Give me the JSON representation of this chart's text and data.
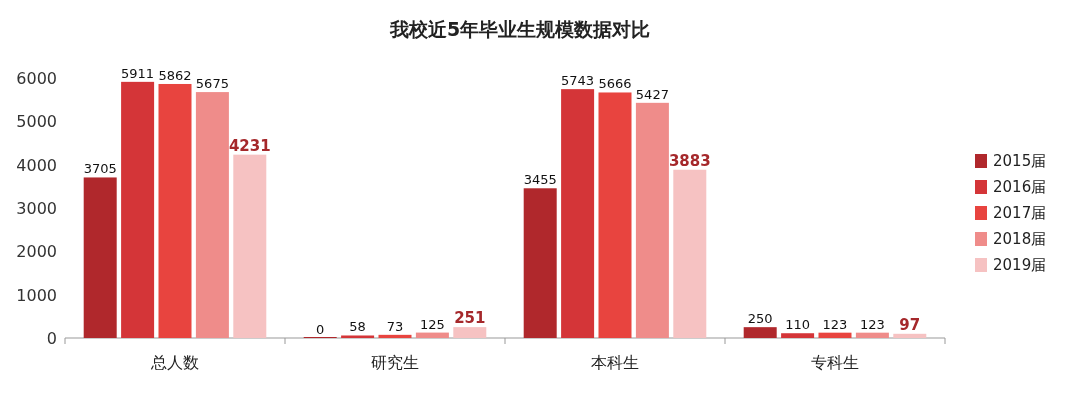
{
  "chart_data": {
    "type": "bar",
    "title": "我校近5年毕业生规模数据对比",
    "categories": [
      "总人数",
      "研究生",
      "本科生",
      "专科生"
    ],
    "series": [
      {
        "name": "2015届",
        "color": "#b0282c",
        "values": [
          3705,
          0,
          3455,
          250
        ]
      },
      {
        "name": "2016届",
        "color": "#d43538",
        "values": [
          5911,
          58,
          5743,
          110
        ]
      },
      {
        "name": "2017届",
        "color": "#e8443f",
        "values": [
          5862,
          73,
          5666,
          123
        ]
      },
      {
        "name": "2018届",
        "color": "#ef8c8a",
        "values": [
          5675,
          125,
          5427,
          123
        ]
      },
      {
        "name": "2019届",
        "color": "#f6c2c2",
        "values": [
          4231,
          251,
          3883,
          97
        ]
      }
    ],
    "ylim": [
      0,
      6000
    ],
    "yticks": [
      0,
      1000,
      2000,
      3000,
      4000,
      5000,
      6000
    ],
    "data_labels": true,
    "grid": false,
    "legend": "right"
  }
}
